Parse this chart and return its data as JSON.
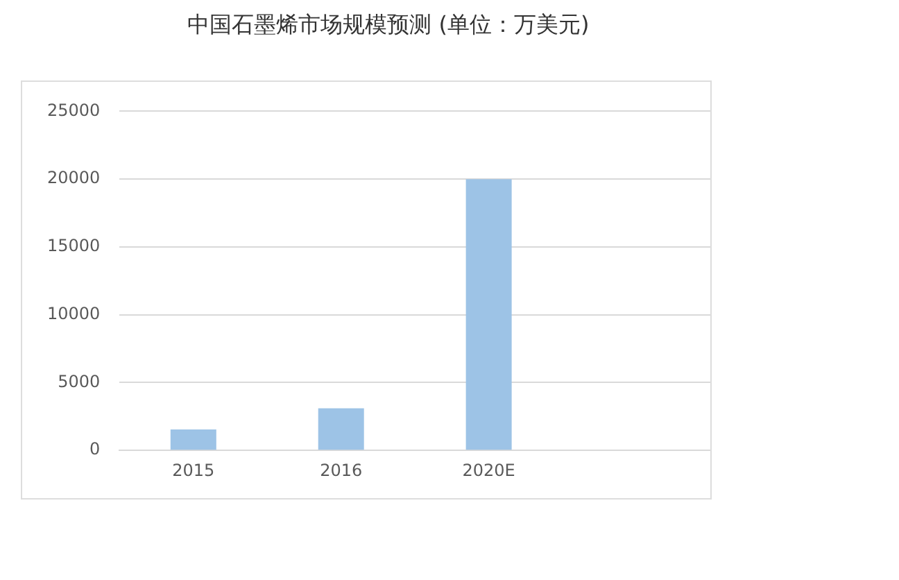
{
  "chart_data": {
    "type": "bar",
    "title": "中国石墨烯市场规模预测 (单位：万美元)",
    "categories": [
      "2015",
      "2016",
      "2020E",
      null
    ],
    "values": [
      1550,
      3100,
      20000,
      null
    ],
    "color": "#9dc3e6",
    "ylim": [
      0,
      25000
    ],
    "yticks": [
      0,
      5000,
      10000,
      15000,
      20000,
      25000
    ],
    "grid": "y"
  }
}
